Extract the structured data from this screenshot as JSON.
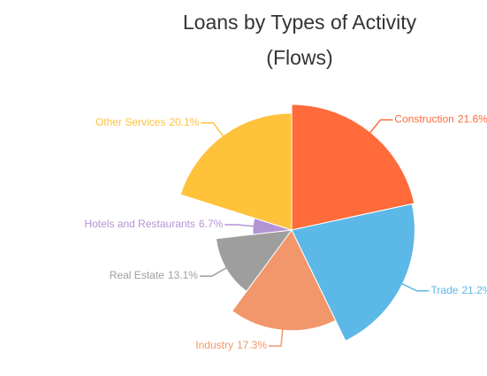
{
  "chart_data": {
    "type": "pie",
    "variable_radius": true,
    "title": "Loans by Types of Activity",
    "subtitle": "(Flows)",
    "categories": [
      "Construction",
      "Trade",
      "Industry",
      "Real Estate",
      "Hotels and Restaurants",
      "Other Services"
    ],
    "values": [
      21.6,
      21.2,
      17.3,
      13.1,
      6.7,
      20.1
    ],
    "value_labels": [
      "21.6%",
      "21.2%",
      "17.3%",
      "13.1%",
      "6.7%",
      "20.1%"
    ],
    "colors": [
      "#ff6b3a",
      "#5cb8e6",
      "#f2966b",
      "#9e9e9e",
      "#b294d4",
      "#ffc23b"
    ]
  }
}
